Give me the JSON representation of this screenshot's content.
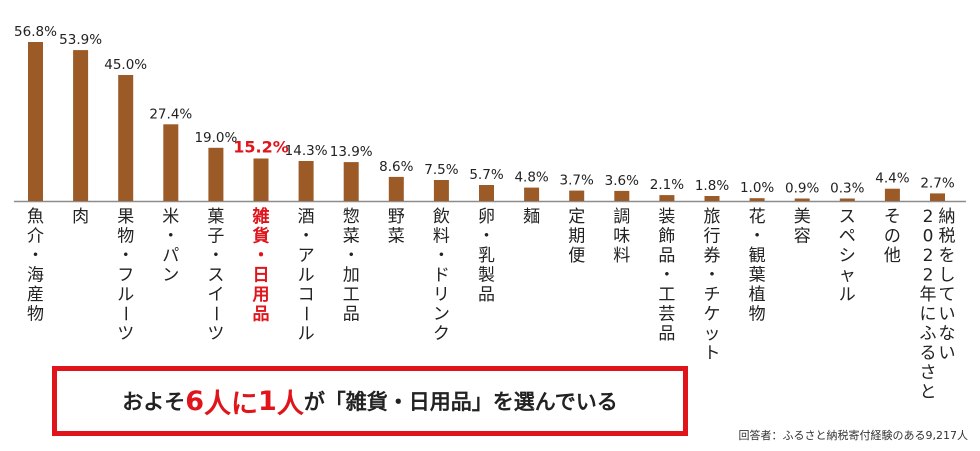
{
  "chart_data": {
    "type": "bar",
    "categories": [
      "魚介・海産物",
      "肉",
      "果物・フルーツ",
      "米・パン",
      "菓子・スイーツ",
      "雑貨・日用品",
      "酒・アルコール",
      "惣菜・加工品",
      "野菜",
      "飲料・ドリンク",
      "卵・乳製品",
      "麺",
      "定期便",
      "調味料",
      "装飾品・工芸品",
      "旅行券・チケット",
      "花・観葉植物",
      "美容",
      "スペシャル",
      "その他",
      "2022年にふるさと納税をしていない"
    ],
    "category_lines": [
      [
        "魚介・海産物"
      ],
      [
        "肉"
      ],
      [
        "果物・フルーツ"
      ],
      [
        "米・パン"
      ],
      [
        "菓子・スイーツ"
      ],
      [
        "雑貨・日用品"
      ],
      [
        "酒・アルコール"
      ],
      [
        "惣菜・加工品"
      ],
      [
        "野菜"
      ],
      [
        "飲料・ドリンク"
      ],
      [
        "卵・乳製品"
      ],
      [
        "麺"
      ],
      [
        "定期便"
      ],
      [
        "調味料"
      ],
      [
        "装飾品・工芸品"
      ],
      [
        "旅行券・チケット"
      ],
      [
        "花・観葉植物"
      ],
      [
        "美容"
      ],
      [
        "スペシャル"
      ],
      [
        "その他"
      ],
      [
        "2022年にふるさと",
        "納税をしていない"
      ]
    ],
    "values": [
      56.8,
      53.9,
      45.0,
      27.4,
      19.0,
      15.2,
      14.3,
      13.9,
      8.6,
      7.5,
      5.7,
      4.8,
      3.7,
      3.6,
      2.1,
      1.8,
      1.0,
      0.9,
      0.3,
      4.4,
      2.7
    ],
    "value_labels": [
      "56.8%",
      "53.9%",
      "45.0%",
      "27.4%",
      "19.0%",
      "15.2%",
      "14.3%",
      "13.9%",
      "8.6%",
      "7.5%",
      "5.7%",
      "4.8%",
      "3.7%",
      "3.6%",
      "2.1%",
      "1.8%",
      "1.0%",
      "0.9%",
      "0.3%",
      "4.4%",
      "2.7%"
    ],
    "highlight_index": 5,
    "ylim": [
      0,
      60
    ],
    "bar_color": "#9b5a26",
    "highlight_color": "#e0141b",
    "grid": false,
    "legend": "none"
  },
  "callout": {
    "pre": "およそ",
    "num1": "6",
    "mid1": "人に",
    "num2": "1",
    "mid2": "人",
    "post": "が「雑貨・日用品」を選んでいる"
  },
  "footnote": "回答者：ふるさと納税寄付経験のある9,217人"
}
